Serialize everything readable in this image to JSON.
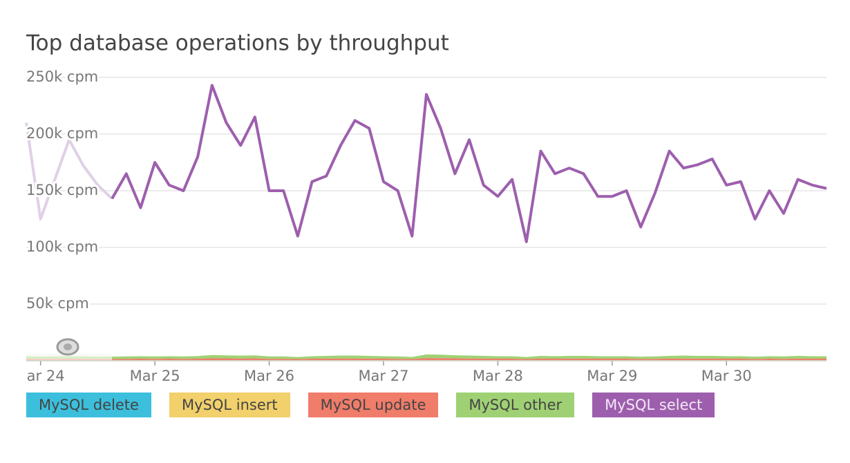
{
  "chart_data": {
    "type": "line",
    "title": "Top database operations by throughput",
    "x": [
      23.875,
      24,
      24.125,
      24.25,
      24.375,
      24.5,
      24.625,
      24.75,
      24.875,
      25,
      25.125,
      25.25,
      25.375,
      25.5,
      25.625,
      25.75,
      25.875,
      26,
      26.125,
      26.25,
      26.375,
      26.5,
      26.625,
      26.75,
      26.875,
      27,
      27.125,
      27.25,
      27.375,
      27.5,
      27.625,
      27.75,
      27.875,
      28,
      28.125,
      28.25,
      28.375,
      28.5,
      28.625,
      28.75,
      28.875,
      29,
      29.125,
      29.25,
      29.375,
      29.5,
      29.625,
      29.75,
      29.875,
      30,
      30.125,
      30.25,
      30.375,
      30.5,
      30.625,
      30.75,
      30.875
    ],
    "xlim": [
      23.875,
      30.875
    ],
    "xticks": [
      {
        "value": 24,
        "label": "ar 24"
      },
      {
        "value": 25,
        "label": "Mar 25"
      },
      {
        "value": 26,
        "label": "Mar 26"
      },
      {
        "value": 27,
        "label": "Mar 27"
      },
      {
        "value": 28,
        "label": "Mar 28"
      },
      {
        "value": 29,
        "label": "Mar 29"
      },
      {
        "value": 30,
        "label": "Mar 30"
      }
    ],
    "ylim": [
      0,
      250000
    ],
    "yticks": [
      {
        "value": 50000,
        "label": "50k cpm"
      },
      {
        "value": 100000,
        "label": "100k cpm"
      },
      {
        "value": 150000,
        "label": "150k cpm"
      },
      {
        "value": 200000,
        "label": "200k cpm"
      },
      {
        "value": 250000,
        "label": "250k cpm"
      }
    ],
    "grid": true,
    "faded_before": 24.625,
    "series": [
      {
        "name": "MySQL delete",
        "color": "#3bbfdc",
        "style": "area",
        "values": [
          300,
          300,
          300,
          300,
          300,
          300,
          300,
          300,
          300,
          300,
          300,
          300,
          300,
          300,
          300,
          300,
          300,
          300,
          300,
          300,
          300,
          300,
          300,
          300,
          300,
          300,
          300,
          300,
          300,
          300,
          300,
          300,
          300,
          300,
          300,
          300,
          300,
          300,
          300,
          300,
          300,
          300,
          300,
          300,
          300,
          300,
          300,
          300,
          300,
          300,
          300,
          300,
          300,
          300,
          300,
          300,
          300
        ]
      },
      {
        "name": "MySQL insert",
        "color": "#f2d06b",
        "style": "area",
        "values": [
          300,
          300,
          300,
          300,
          300,
          300,
          300,
          300,
          300,
          300,
          300,
          300,
          300,
          300,
          300,
          300,
          300,
          300,
          300,
          300,
          300,
          300,
          300,
          300,
          300,
          300,
          300,
          300,
          300,
          300,
          300,
          300,
          300,
          300,
          300,
          300,
          300,
          300,
          300,
          300,
          300,
          300,
          300,
          300,
          300,
          300,
          300,
          300,
          300,
          300,
          300,
          300,
          300,
          300,
          300,
          300,
          300
        ]
      },
      {
        "name": "MySQL update",
        "color": "#f07c6a",
        "style": "area",
        "values": [
          1200,
          1000,
          1100,
          1200,
          1100,
          1000,
          1000,
          1100,
          1200,
          1100,
          1200,
          1100,
          1200,
          1600,
          1500,
          1400,
          1500,
          1100,
          1100,
          900,
          1200,
          1300,
          1400,
          1400,
          1300,
          1200,
          1100,
          900,
          1800,
          1700,
          1500,
          1400,
          1300,
          1200,
          1200,
          900,
          1300,
          1200,
          1300,
          1300,
          1200,
          1200,
          1200,
          1000,
          1100,
          1300,
          1400,
          1300,
          1300,
          1200,
          1200,
          1000,
          1200,
          1100,
          1300,
          1200,
          1200
        ]
      },
      {
        "name": "MySQL other",
        "color": "#9fd174",
        "style": "area",
        "values": [
          2200,
          2000,
          2100,
          2200,
          2100,
          2000,
          2000,
          2100,
          2200,
          2100,
          2200,
          2100,
          2300,
          2800,
          2600,
          2500,
          2600,
          2100,
          2100,
          1800,
          2200,
          2400,
          2600,
          2600,
          2400,
          2200,
          2100,
          1800,
          3200,
          3000,
          2700,
          2600,
          2400,
          2200,
          2200,
          1800,
          2400,
          2200,
          2400,
          2400,
          2200,
          2200,
          2200,
          1900,
          2100,
          2400,
          2600,
          2400,
          2400,
          2200,
          2200,
          1900,
          2200,
          2100,
          2400,
          2200,
          2200
        ]
      },
      {
        "name": "MySQL select",
        "color": "#9d5fad",
        "style": "line",
        "values": [
          210000,
          125000,
          160000,
          195000,
          172000,
          155000,
          143000,
          165000,
          135000,
          175000,
          155000,
          150000,
          180000,
          243000,
          210000,
          190000,
          215000,
          150000,
          150000,
          110000,
          158000,
          163000,
          190000,
          212000,
          205000,
          158000,
          150000,
          110000,
          235000,
          205000,
          165000,
          195000,
          155000,
          145000,
          160000,
          105000,
          185000,
          165000,
          170000,
          165000,
          145000,
          145000,
          150000,
          118000,
          148000,
          185000,
          170000,
          173000,
          178000,
          155000,
          158000,
          125000,
          150000,
          130000,
          160000,
          155000,
          152000
        ]
      }
    ]
  }
}
